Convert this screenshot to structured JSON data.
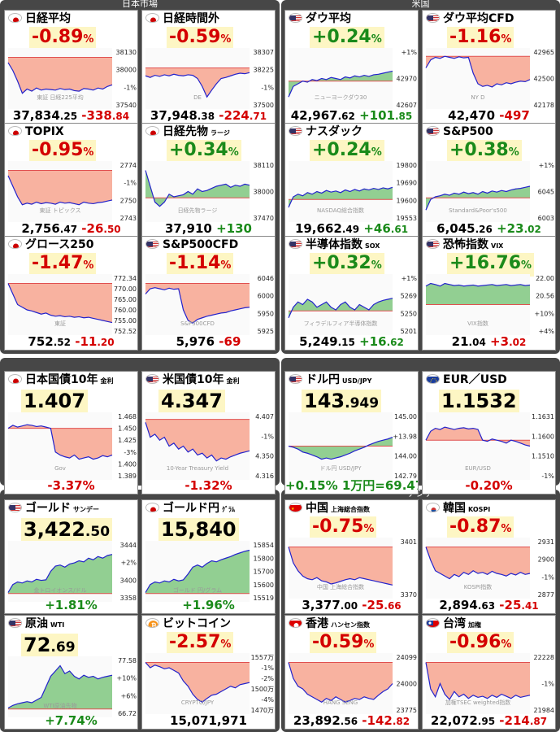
{
  "groups": [
    {
      "title": "日本市場"
    },
    {
      "title": "米国"
    },
    {
      "title": ""
    },
    {
      "title": ""
    },
    {
      "title": ""
    },
    {
      "title": "アジア"
    }
  ],
  "cards": [
    {
      "name": "日経平均",
      "sub": "",
      "flag": "jp",
      "pct": "-0.89",
      "dir": "dn",
      "price_int": "37,834",
      "price_dec": ".25",
      "chg_int": "-338",
      "chg_dec": ".84",
      "watermark": "東証 日経225平均",
      "ticks": [
        "38130",
        "38000",
        "-1%",
        "37540"
      ],
      "series": [
        0.2,
        0.35,
        0.55,
        0.78,
        0.7,
        0.74,
        0.68,
        0.72,
        0.7,
        0.71,
        0.72,
        0.69,
        0.71,
        0.7,
        0.73,
        0.74,
        0.69,
        0.7,
        0.72,
        0.68,
        0.7,
        0.65,
        0.62
      ],
      "base": 0.1
    },
    {
      "name": "日経時間外",
      "sub": "",
      "flag": "jp",
      "pct": "-0.59",
      "dir": "dn",
      "price_int": "37,948",
      "price_dec": ".38",
      "chg_int": "-224",
      "chg_dec": ".71",
      "watermark": "DE",
      "ticks": [
        "38307",
        "38225",
        "-1%",
        "37500"
      ],
      "series": [
        0.45,
        0.48,
        0.44,
        0.46,
        0.43,
        0.45,
        0.42,
        0.44,
        0.45,
        0.43,
        0.44,
        0.5,
        0.65,
        0.85,
        0.72,
        0.6,
        0.5,
        0.48,
        0.45,
        0.42,
        0.4,
        0.41,
        0.39
      ],
      "base": 0.3
    },
    {
      "name": "ダウ平均",
      "sub": "",
      "flag": "us",
      "pct": "+0.24",
      "dir": "up",
      "price_int": "42,967",
      "price_dec": ".62",
      "chg_int": "+101",
      "chg_dec": ".85",
      "watermark": "ニューヨークダウ30",
      "ticks": [
        "+1%",
        "42970",
        "42607"
      ],
      "series": [
        0.85,
        0.65,
        0.6,
        0.55,
        0.57,
        0.52,
        0.54,
        0.5,
        0.52,
        0.48,
        0.5,
        0.52,
        0.47,
        0.49,
        0.45,
        0.47,
        0.44,
        0.46,
        0.43,
        0.42,
        0.4,
        0.38,
        0.36
      ],
      "base": 0.55
    },
    {
      "name": "ダウ平均CFD",
      "sub": "",
      "flag": "us",
      "pct": "-1.16",
      "dir": "dn",
      "price_int": "42,470",
      "price_dec": "",
      "chg_int": "-497",
      "chg_dec": "",
      "watermark": "NY D",
      "ticks": [
        "42965",
        "42500",
        "42178"
      ],
      "series": [
        0.3,
        0.15,
        0.1,
        0.12,
        0.08,
        0.1,
        0.12,
        0.09,
        0.11,
        0.1,
        0.4,
        0.6,
        0.65,
        0.63,
        0.66,
        0.6,
        0.62,
        0.58,
        0.6,
        0.57,
        0.55,
        0.56,
        0.52
      ],
      "base": 0.08
    },
    {
      "name": "TOPIX",
      "sub": "",
      "flag": "jp",
      "pct": "-0.95",
      "dir": "dn",
      "price_int": "2,756",
      "price_dec": ".47",
      "chg_int": "-26",
      "chg_dec": ".50",
      "watermark": "東証 トピックス",
      "ticks": [
        "2774",
        "-1%",
        "2750",
        "2743"
      ],
      "series": [
        0.2,
        0.4,
        0.6,
        0.75,
        0.72,
        0.74,
        0.7,
        0.73,
        0.71,
        0.72,
        0.74,
        0.7,
        0.72,
        0.71,
        0.73,
        0.75,
        0.7,
        0.72,
        0.73,
        0.71,
        0.7,
        0.68,
        0.66
      ],
      "base": 0.1
    },
    {
      "name": "日経先物",
      "sub": "ラージ",
      "flag": "jp",
      "pct": "+0.34",
      "dir": "up",
      "price_int": "37,910",
      "price_dec": "",
      "chg_int": "+130",
      "chg_dec": "",
      "watermark": "日経先物ラージ",
      "ticks": [
        "38110",
        "38000",
        "37470"
      ],
      "series": [
        0.1,
        0.4,
        0.7,
        0.78,
        0.7,
        0.55,
        0.6,
        0.58,
        0.56,
        0.5,
        0.55,
        0.45,
        0.5,
        0.48,
        0.44,
        0.4,
        0.38,
        0.36,
        0.42,
        0.38,
        0.4,
        0.36,
        0.38
      ],
      "base": 0.62
    },
    {
      "name": "ナスダック",
      "sub": "",
      "flag": "us",
      "pct": "+0.24",
      "dir": "up",
      "price_int": "19,662",
      "price_dec": ".49",
      "chg_int": "+46",
      "chg_dec": ".61",
      "watermark": "NASDAQ総合指数",
      "ticks": [
        "19800",
        "19690",
        "19600",
        "19553"
      ],
      "series": [
        0.8,
        0.6,
        0.55,
        0.58,
        0.52,
        0.55,
        0.5,
        0.53,
        0.48,
        0.51,
        0.49,
        0.52,
        0.47,
        0.5,
        0.46,
        0.49,
        0.45,
        0.47,
        0.44,
        0.46,
        0.43,
        0.45,
        0.42
      ],
      "base": 0.65
    },
    {
      "name": "S&P500",
      "sub": "",
      "flag": "us",
      "pct": "+0.38",
      "dir": "up",
      "price_int": "6,045",
      "price_dec": ".26",
      "chg_int": "+23",
      "chg_dec": ".02",
      "watermark": "Standard&Poor's500",
      "ticks": [
        "+1%",
        "6045",
        "6003"
      ],
      "series": [
        0.85,
        0.65,
        0.6,
        0.58,
        0.55,
        0.57,
        0.53,
        0.55,
        0.51,
        0.54,
        0.52,
        0.55,
        0.5,
        0.53,
        0.49,
        0.51,
        0.48,
        0.5,
        0.47,
        0.45,
        0.44,
        0.42,
        0.4
      ],
      "base": 0.62
    },
    {
      "name": "グロース250",
      "sub": "",
      "flag": "jp",
      "pct": "-1.47",
      "dir": "dn",
      "price_int": "752",
      "price_dec": ".52",
      "chg_int": "-11",
      "chg_dec": ".20",
      "watermark": "東証",
      "ticks": [
        "772.34",
        "770.00",
        "765.00",
        "760.00",
        "755.00",
        "752.52"
      ],
      "series": [
        0.1,
        0.3,
        0.5,
        0.55,
        0.6,
        0.62,
        0.65,
        0.68,
        0.66,
        0.7,
        0.72,
        0.71,
        0.73,
        0.72,
        0.74,
        0.73,
        0.75,
        0.74,
        0.76,
        0.78,
        0.8,
        0.82,
        0.84
      ],
      "base": 0.1
    },
    {
      "name": "S&P500CFD",
      "sub": "",
      "flag": "us",
      "pct": "-1.14",
      "dir": "dn",
      "price_int": "5,976",
      "price_dec": "",
      "chg_int": "-69",
      "chg_dec": "",
      "watermark": "S&P500CFD",
      "ticks": [
        "6046",
        "6000",
        "5950",
        "5925"
      ],
      "series": [
        0.3,
        0.2,
        0.18,
        0.2,
        0.22,
        0.19,
        0.21,
        0.2,
        0.6,
        0.8,
        0.85,
        0.78,
        0.75,
        0.72,
        0.7,
        0.68,
        0.66,
        0.65,
        0.62,
        0.6,
        0.58,
        0.56,
        0.55
      ],
      "base": 0.1
    },
    {
      "name": "半導体指数",
      "sub": "SOX",
      "flag": "us",
      "pct": "+0.32",
      "dir": "up",
      "price_int": "5,249",
      "price_dec": ".15",
      "chg_int": "+16",
      "chg_dec": ".62",
      "watermark": "フィラデルフィア半導体指数",
      "ticks": [
        "+1%",
        "5269",
        "5250",
        "5201"
      ],
      "series": [
        0.75,
        0.55,
        0.45,
        0.5,
        0.4,
        0.45,
        0.55,
        0.5,
        0.45,
        0.55,
        0.6,
        0.5,
        0.45,
        0.55,
        0.6,
        0.5,
        0.55,
        0.6,
        0.5,
        0.45,
        0.42,
        0.4,
        0.38
      ],
      "base": 0.62
    },
    {
      "name": "恐怖指数",
      "sub": "VIX",
      "flag": "us",
      "pct": "+16.76",
      "dir": "up",
      "price_int": "21",
      "price_dec": ".04",
      "chg_int": "+3",
      "chg_dec": ".02",
      "chgdir": "dn",
      "watermark": "VIX指数",
      "ticks": [
        "22.00",
        "20.56",
        "+10%",
        "+4%"
      ],
      "series": [
        0.15,
        0.1,
        0.12,
        0.15,
        0.1,
        0.12,
        0.14,
        0.13,
        0.15,
        0.14,
        0.13,
        0.15,
        0.14,
        0.13,
        0.12,
        0.14,
        0.13,
        0.12,
        0.14,
        0.13,
        0.12,
        0.14,
        0.13
      ],
      "base": 0.5
    },
    {
      "name": "日本国債10年",
      "sub": "金利",
      "flag": "jp",
      "pct": "",
      "dir": "dn",
      "big_int": "1.407",
      "big_dec": "",
      "bot": "-3.37%",
      "botdir": "dn",
      "watermark": "Gov",
      "ticks": [
        "1.468",
        "1.450",
        "1.425",
        "-3%",
        "1.400",
        "1.389"
      ],
      "series": [
        0.2,
        0.15,
        0.18,
        0.16,
        0.14,
        0.15,
        0.17,
        0.16,
        0.18,
        0.2,
        0.6,
        0.65,
        0.68,
        0.7,
        0.65,
        0.72,
        0.7,
        0.68,
        0.72,
        0.7,
        0.66,
        0.68,
        0.65
      ],
      "base": 0.2
    },
    {
      "name": "米国債10年",
      "sub": "金利",
      "flag": "us",
      "pct": "",
      "dir": "dn",
      "big_int": "4.347",
      "big_dec": "",
      "bot": "-1.32%",
      "botdir": "dn",
      "watermark": "10-Year Treasury Yield",
      "ticks": [
        "4.407",
        "-1%",
        "4.350",
        "4.316"
      ],
      "series": [
        0.1,
        0.35,
        0.3,
        0.4,
        0.35,
        0.5,
        0.45,
        0.55,
        0.5,
        0.6,
        0.55,
        0.65,
        0.62,
        0.7,
        0.65,
        0.75,
        0.7,
        0.72,
        0.68,
        0.65,
        0.62,
        0.6,
        0.58
      ],
      "base": 0.05
    },
    {
      "name": "ドル円",
      "sub": "USD/JPY",
      "flag": "us",
      "pct": "",
      "dir": "up",
      "big_int": "143",
      "big_dec": ".949",
      "bot": "+0.15%  1万円=69.47",
      "botdir": "up",
      "watermark": "ドル円 USD/JPY",
      "ticks": [
        "145.00",
        "+13.98",
        "144.00",
        "142.79"
      ],
      "series": [
        0.5,
        0.52,
        0.55,
        0.6,
        0.62,
        0.65,
        0.68,
        0.72,
        0.7,
        0.72,
        0.7,
        0.68,
        0.65,
        0.62,
        0.58,
        0.55,
        0.52,
        0.48,
        0.45,
        0.42,
        0.4,
        0.38,
        0.35
      ],
      "base": 0.5
    },
    {
      "name": "EUR／USD",
      "sub": "",
      "flag": "eu",
      "pct": "",
      "dir": "dn",
      "big_int": "1.1532",
      "big_dec": "",
      "bot": "-0.20%",
      "botdir": "dn",
      "watermark": "EUR/USD",
      "ticks": [
        "1.1631",
        "1.1600",
        "1.1510",
        "-1%"
      ],
      "series": [
        0.4,
        0.25,
        0.2,
        0.22,
        0.18,
        0.2,
        0.22,
        0.2,
        0.19,
        0.21,
        0.2,
        0.22,
        0.4,
        0.42,
        0.38,
        0.4,
        0.42,
        0.45,
        0.4,
        0.42,
        0.45,
        0.48,
        0.5
      ],
      "base": 0.4
    },
    {
      "name": "ゴールド",
      "sub": "サンデー",
      "flag": "us",
      "pct": "",
      "dir": "up",
      "big_int": "3,422",
      "big_dec": ".50",
      "bot": "+1.81%",
      "botdir": "up",
      "watermark": "金トロイオンス/ドル",
      "ticks": [
        "3444",
        "+2%",
        "3400",
        "3358"
      ],
      "series": [
        0.9,
        0.75,
        0.7,
        0.72,
        0.68,
        0.7,
        0.65,
        0.67,
        0.66,
        0.5,
        0.4,
        0.38,
        0.42,
        0.36,
        0.34,
        0.3,
        0.32,
        0.25,
        0.28,
        0.22,
        0.25,
        0.2,
        0.18
      ],
      "base": 0.92
    },
    {
      "name": "ゴールド円",
      "sub": "ｸﾞﾗﾑ",
      "flag": "jp",
      "pct": "",
      "dir": "up",
      "big_int": "15,840",
      "big_dec": "",
      "bot": "+1.96%",
      "botdir": "up",
      "watermark": "ゴールド 円/グラム",
      "ticks": [
        "15854",
        "15800",
        "15700",
        "15600",
        "15519"
      ],
      "series": [
        0.9,
        0.75,
        0.7,
        0.72,
        0.68,
        0.7,
        0.65,
        0.68,
        0.66,
        0.55,
        0.42,
        0.38,
        0.42,
        0.35,
        0.3,
        0.32,
        0.28,
        0.25,
        0.22,
        0.18,
        0.15,
        0.12,
        0.1
      ],
      "base": 0.92
    },
    {
      "name": "中国",
      "sub": "上海総合指数",
      "flag": "cn",
      "pct": "-0.75",
      "dir": "dn",
      "price_int": "3,377",
      "price_dec": ".00",
      "chg_int": "-25",
      "chg_dec": ".66",
      "watermark": "中国 上海総合指数",
      "ticks": [
        "3401",
        "3370"
      ],
      "series": [
        0.1,
        0.4,
        0.55,
        0.65,
        0.7,
        0.72,
        0.68,
        0.74,
        0.76,
        0.8,
        0.78,
        0.75,
        0.72,
        0.7,
        0.72,
        0.68,
        0.7,
        0.72,
        0.74,
        0.76,
        0.78,
        0.8,
        0.82
      ],
      "base": 0.1
    },
    {
      "name": "韓国",
      "sub": "KOSPI",
      "flag": "kr",
      "pct": "-0.87",
      "dir": "dn",
      "price_int": "2,894",
      "price_dec": ".63",
      "chg_int": "-25",
      "chg_dec": ".41",
      "watermark": "KOSPI指数",
      "ticks": [
        "2931",
        "2900",
        "-1%",
        "2877"
      ],
      "series": [
        0.1,
        0.35,
        0.55,
        0.6,
        0.65,
        0.7,
        0.62,
        0.66,
        0.58,
        0.62,
        0.55,
        0.6,
        0.58,
        0.62,
        0.56,
        0.6,
        0.62,
        0.65,
        0.6,
        0.63,
        0.58,
        0.62,
        0.6
      ],
      "base": 0.1
    },
    {
      "name": "原油",
      "sub": "WTI",
      "flag": "us",
      "pct": "",
      "dir": "up",
      "big_int": "72",
      "big_dec": ".69",
      "bot": "+7.74%",
      "botdir": "up",
      "watermark": "WTI原油先物",
      "ticks": [
        "77.58",
        "+10%",
        "+6%",
        "66.72"
      ],
      "series": [
        0.9,
        0.85,
        0.82,
        0.8,
        0.78,
        0.8,
        0.75,
        0.7,
        0.5,
        0.3,
        0.2,
        0.1,
        0.25,
        0.2,
        0.3,
        0.35,
        0.28,
        0.32,
        0.3,
        0.35,
        0.32,
        0.3,
        0.28
      ],
      "base": 0.92
    },
    {
      "name": "ビットコイン",
      "sub": "",
      "flag": "btc",
      "pct": "-2.57",
      "dir": "dn",
      "price_int": "15,071,971",
      "price_dec": "",
      "chg_int": "",
      "chg_dec": "",
      "watermark": "CRYPTO/JPY",
      "ticks": [
        "1557万",
        "-1%",
        "-2%",
        "1500万",
        "-4%",
        "1470万"
      ],
      "series": [
        0.1,
        0.2,
        0.15,
        0.18,
        0.22,
        0.2,
        0.25,
        0.3,
        0.45,
        0.55,
        0.7,
        0.8,
        0.85,
        0.78,
        0.72,
        0.7,
        0.65,
        0.6,
        0.55,
        0.58,
        0.52,
        0.5,
        0.48
      ],
      "base": 0.1
    },
    {
      "name": "香港",
      "sub": "ハンセン指数",
      "flag": "hk",
      "pct": "-0.59",
      "dir": "dn",
      "price_int": "23,892",
      "price_dec": ".56",
      "chg_int": "-142",
      "chg_dec": ".82",
      "watermark": "HANG SENG",
      "ticks": [
        "24099",
        "24000",
        "23775"
      ],
      "series": [
        0.1,
        0.4,
        0.55,
        0.6,
        0.7,
        0.75,
        0.8,
        0.85,
        0.78,
        0.82,
        0.75,
        0.8,
        0.85,
        0.82,
        0.78,
        0.8,
        0.75,
        0.78,
        0.8,
        0.72,
        0.65,
        0.6,
        0.5
      ],
      "base": 0.1
    },
    {
      "name": "台湾",
      "sub": "加権",
      "flag": "tw",
      "pct": "-0.96",
      "dir": "dn",
      "price_int": "22,072",
      "price_dec": ".95",
      "chg_int": "-214",
      "chg_dec": ".87",
      "watermark": "加権TSEC weighted指数",
      "ticks": [
        "22228",
        "-1%",
        "21984"
      ],
      "series": [
        0.1,
        0.6,
        0.75,
        0.5,
        0.7,
        0.8,
        0.65,
        0.75,
        0.7,
        0.78,
        0.72,
        0.76,
        0.74,
        0.78,
        0.72,
        0.76,
        0.7,
        0.74,
        0.78,
        0.72,
        0.76,
        0.74,
        0.72
      ],
      "base": 0.1
    }
  ]
}
